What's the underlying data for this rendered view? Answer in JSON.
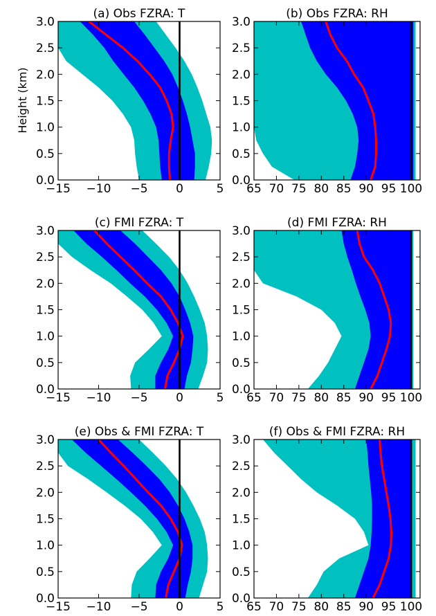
{
  "figure": {
    "ylabel": "Height (km)"
  },
  "chart_data": [
    {
      "panel": "a",
      "type": "area",
      "title": "(a) Obs FZRA: T",
      "xlim": [
        -15,
        5
      ],
      "ylim": [
        0,
        3
      ],
      "xticks": [
        -15,
        -10,
        -5,
        0,
        5
      ],
      "xtick_labels": [
        "−15",
        "−10",
        "−5",
        "0",
        "5"
      ],
      "yticks": [
        0,
        0.5,
        1,
        1.5,
        2,
        2.5,
        3
      ],
      "ytick_labels": [
        "0.0",
        "0.5",
        "1.0",
        "1.5",
        "2.0",
        "2.5",
        "3.0"
      ],
      "show_ylabel": true,
      "vline": 0,
      "y": [
        0,
        0.25,
        0.5,
        0.75,
        1,
        1.25,
        1.5,
        1.75,
        2,
        2.25,
        2.5,
        2.75,
        3
      ],
      "outer_low": [
        -5,
        -5.3,
        -5.5,
        -5.6,
        -6,
        -7,
        -8.3,
        -10,
        -12,
        -14,
        -15,
        -15,
        -15
      ],
      "outer_high": [
        3.2,
        3.6,
        3.9,
        4,
        3.8,
        3.3,
        2.8,
        2.2,
        1.5,
        0.6,
        -0.5,
        -1.7,
        -2.9
      ],
      "inner_low": [
        -2.2,
        -2.4,
        -2.5,
        -2.6,
        -2.9,
        -3.6,
        -4.5,
        -5.6,
        -6.9,
        -8.2,
        -9.3,
        -10.7,
        -12.3
      ],
      "inner_high": [
        1.8,
        1.9,
        1.9,
        1.6,
        1.3,
        0.9,
        0.4,
        -0.2,
        -0.9,
        -1.9,
        -3.1,
        -4.3,
        -5.6
      ],
      "median": [
        -1.2,
        -1.3,
        -1.3,
        -1.1,
        -0.8,
        -1,
        -1.6,
        -2.4,
        -3.7,
        -5.2,
        -7,
        -9.1,
        -11.2
      ]
    },
    {
      "panel": "b",
      "type": "area",
      "title": "(b) Obs FZRA: RH",
      "xlim": [
        65,
        102
      ],
      "ylim": [
        0,
        3
      ],
      "xticks": [
        65,
        70,
        75,
        80,
        85,
        90,
        95,
        100
      ],
      "xtick_labels": [
        "65",
        "70",
        "75",
        "80",
        "85",
        "90",
        "95",
        "100"
      ],
      "yticks": [
        0,
        0.5,
        1,
        1.5,
        2,
        2.5,
        3
      ],
      "ytick_labels": [
        "0.0",
        "0.5",
        "1.0",
        "1.5",
        "2.0",
        "2.5",
        "3.0"
      ],
      "show_ylabel": false,
      "vline": 100,
      "y": [
        0,
        0.25,
        0.5,
        0.75,
        1,
        1.25,
        1.5,
        1.75,
        2,
        2.25,
        2.5,
        2.75,
        3
      ],
      "outer_low": [
        74,
        69,
        67,
        65.5,
        65,
        65,
        65,
        65,
        65,
        65,
        65,
        65,
        65
      ],
      "outer_high": [
        101,
        101,
        101,
        101,
        101,
        101,
        101,
        101,
        101,
        101,
        101,
        101,
        101
      ],
      "inner_low": [
        86.5,
        87.5,
        88,
        88.3,
        88,
        87,
        85.5,
        83.5,
        81,
        79,
        77.5,
        76.5,
        75.5
      ],
      "inner_high": [
        100.5,
        100.5,
        100.5,
        100.5,
        100.5,
        100.5,
        100.5,
        100.5,
        100.5,
        100.5,
        100.5,
        100.5,
        100.5
      ],
      "median": [
        91,
        92,
        92.2,
        92.2,
        92,
        91.6,
        90.5,
        89.3,
        87.3,
        85.7,
        83.5,
        82,
        81
      ]
    },
    {
      "panel": "c",
      "type": "area",
      "title": "(c) FMI FZRA: T",
      "xlim": [
        -15,
        5
      ],
      "ylim": [
        0,
        3
      ],
      "xticks": [
        -15,
        -10,
        -5,
        0,
        5
      ],
      "xtick_labels": [
        "−15",
        "−10",
        "−5",
        "0",
        "5"
      ],
      "yticks": [
        0,
        0.5,
        1,
        1.5,
        2,
        2.5,
        3
      ],
      "ytick_labels": [
        "0.0",
        "0.5",
        "1.0",
        "1.5",
        "2.0",
        "2.5",
        "3.0"
      ],
      "show_ylabel": false,
      "vline": 0,
      "y": [
        0,
        0.25,
        0.5,
        0.75,
        1,
        1.25,
        1.5,
        1.75,
        2,
        2.25,
        2.5,
        2.75,
        3
      ],
      "outer_low": [
        -6,
        -6.1,
        -5.5,
        -3.8,
        -2.2,
        -3.2,
        -4.6,
        -6.5,
        -8.5,
        -11,
        -13.3,
        -15,
        -15
      ],
      "outer_high": [
        2.3,
        2.9,
        3.4,
        3.5,
        3.4,
        3.1,
        2.5,
        1.8,
        1,
        0,
        -1.3,
        -2.9,
        -4.6
      ],
      "inner_low": [
        -3,
        -3,
        -2.3,
        -1.4,
        -0.8,
        -1.6,
        -2.8,
        -4.3,
        -6.1,
        -7.8,
        -9.6,
        -11.5,
        -13.1
      ],
      "inner_high": [
        0.6,
        0.9,
        1.4,
        1.6,
        1.7,
        1.3,
        0.7,
        0,
        -1,
        -2.3,
        -3.9,
        -5.5,
        -7.3
      ],
      "median": [
        -1.8,
        -1.5,
        -0.7,
        0,
        0.4,
        -0.2,
        -1.1,
        -2.3,
        -4,
        -5.6,
        -7.3,
        -9,
        -10.5
      ]
    },
    {
      "panel": "d",
      "type": "area",
      "title": "(d) FMI FZRA: RH",
      "xlim": [
        65,
        102
      ],
      "ylim": [
        0,
        3
      ],
      "xticks": [
        65,
        70,
        75,
        80,
        85,
        90,
        95,
        100
      ],
      "xtick_labels": [
        "65",
        "70",
        "75",
        "80",
        "85",
        "90",
        "95",
        "100"
      ],
      "yticks": [
        0,
        0.5,
        1,
        1.5,
        2,
        2.5,
        3
      ],
      "ytick_labels": [
        "0.0",
        "0.5",
        "1.0",
        "1.5",
        "2.0",
        "2.5",
        "3.0"
      ],
      "show_ylabel": false,
      "vline": 100,
      "y": [
        0,
        0.25,
        0.5,
        0.75,
        1,
        1.25,
        1.5,
        1.75,
        2,
        2.25,
        2.5,
        2.75,
        3
      ],
      "outer_low": [
        77,
        79.5,
        81.5,
        83,
        84.5,
        83,
        80,
        74.5,
        67,
        65,
        65,
        65,
        65
      ],
      "outer_high": [
        100.5,
        100.5,
        100.5,
        100.5,
        100.5,
        100.5,
        100.5,
        100.5,
        100.5,
        100.5,
        100.5,
        100.5,
        100.5
      ],
      "inner_low": [
        87.5,
        88.5,
        89.5,
        90.5,
        91,
        90.7,
        89.8,
        88.7,
        87.7,
        86.8,
        85.8,
        85,
        84.5
      ],
      "inner_high": [
        100,
        100,
        100,
        100,
        100,
        100,
        100,
        100,
        100,
        100,
        100,
        100,
        100
      ],
      "median": [
        91,
        92.5,
        93.5,
        94.5,
        95.3,
        95.5,
        95,
        94,
        93,
        91.5,
        89.5,
        88.5,
        88
      ]
    },
    {
      "panel": "e",
      "type": "area",
      "title": "(e) Obs & FMI FZRA: T",
      "xlim": [
        -15,
        5
      ],
      "ylim": [
        0,
        3
      ],
      "xticks": [
        -15,
        -10,
        -5,
        0,
        5
      ],
      "xtick_labels": [
        "−15",
        "−10",
        "−5",
        "0",
        "5"
      ],
      "yticks": [
        0,
        0.5,
        1,
        1.5,
        2,
        2.5,
        3
      ],
      "ytick_labels": [
        "0.0",
        "0.5",
        "1.0",
        "1.5",
        "2.0",
        "2.5",
        "3.0"
      ],
      "show_ylabel": false,
      "vline": 0,
      "y": [
        0,
        0.25,
        0.5,
        0.75,
        1,
        1.25,
        1.5,
        1.75,
        2,
        2.25,
        2.5,
        2.75,
        3
      ],
      "outer_low": [
        -6,
        -5.9,
        -5.3,
        -3.7,
        -2.2,
        -3.3,
        -4.8,
        -6.8,
        -9,
        -11.3,
        -13.8,
        -15,
        -15
      ],
      "outer_high": [
        2.4,
        2.9,
        3.4,
        3.5,
        3.4,
        3.1,
        2.5,
        1.7,
        0.8,
        -0.3,
        -1.7,
        -3.3,
        -5
      ],
      "inner_low": [
        -3,
        -2.9,
        -2.3,
        -1.4,
        -0.8,
        -1.6,
        -2.8,
        -4.3,
        -6,
        -7.8,
        -9.7,
        -11.6,
        -13.3
      ],
      "inner_high": [
        0.7,
        1,
        1.4,
        1.6,
        1.6,
        1.2,
        0.6,
        -0.2,
        -1.2,
        -2.5,
        -4.1,
        -5.8,
        -7.6
      ],
      "median": [
        -1.7,
        -1.4,
        -0.7,
        0,
        0.3,
        -0.2,
        -1.1,
        -2.3,
        -3.9,
        -5.4,
        -6.9,
        -8.5,
        -10
      ]
    },
    {
      "panel": "f",
      "type": "area",
      "title": "(f) Obs & FMI FZRA: RH",
      "xlim": [
        65,
        102
      ],
      "ylim": [
        0,
        3
      ],
      "xticks": [
        65,
        70,
        75,
        80,
        85,
        90,
        95,
        100
      ],
      "xtick_labels": [
        "65",
        "70",
        "75",
        "80",
        "85",
        "90",
        "95",
        "100"
      ],
      "yticks": [
        0,
        0.5,
        1,
        1.5,
        2,
        2.5,
        3
      ],
      "ytick_labels": [
        "0.0",
        "0.5",
        "1.0",
        "1.5",
        "2.0",
        "2.5",
        "3.0"
      ],
      "show_ylabel": false,
      "vline": 100,
      "y": [
        0,
        0.25,
        0.5,
        0.75,
        1,
        1.25,
        1.5,
        1.75,
        2,
        2.25,
        2.5,
        2.75,
        3
      ],
      "outer_low": [
        77,
        79,
        80.5,
        84,
        90.5,
        89.5,
        87.5,
        83.5,
        79,
        75.5,
        72.5,
        69.5,
        67
      ],
      "outer_high": [
        101,
        101,
        101,
        101,
        101,
        101,
        101,
        101,
        101,
        101,
        101,
        101,
        101
      ],
      "inner_low": [
        87.5,
        88.5,
        89.5,
        90.5,
        91,
        91.2,
        91.3,
        91.3,
        91.1,
        90.8,
        90.5,
        90.3,
        90
      ],
      "inner_high": [
        100.2,
        100.2,
        100.2,
        100.2,
        100.2,
        100.2,
        100.2,
        100.2,
        100.2,
        100.2,
        100.2,
        100.2,
        100.2
      ],
      "median": [
        91.5,
        93,
        94,
        95,
        95.5,
        95.6,
        95.4,
        95,
        94.5,
        94,
        93.5,
        93.2,
        93
      ]
    }
  ],
  "colors": {
    "outer_band": "#00c0c0",
    "inner_band": "#0000ff",
    "median": "#ff0000",
    "reference_line": "#000000",
    "axes": "#000000"
  }
}
